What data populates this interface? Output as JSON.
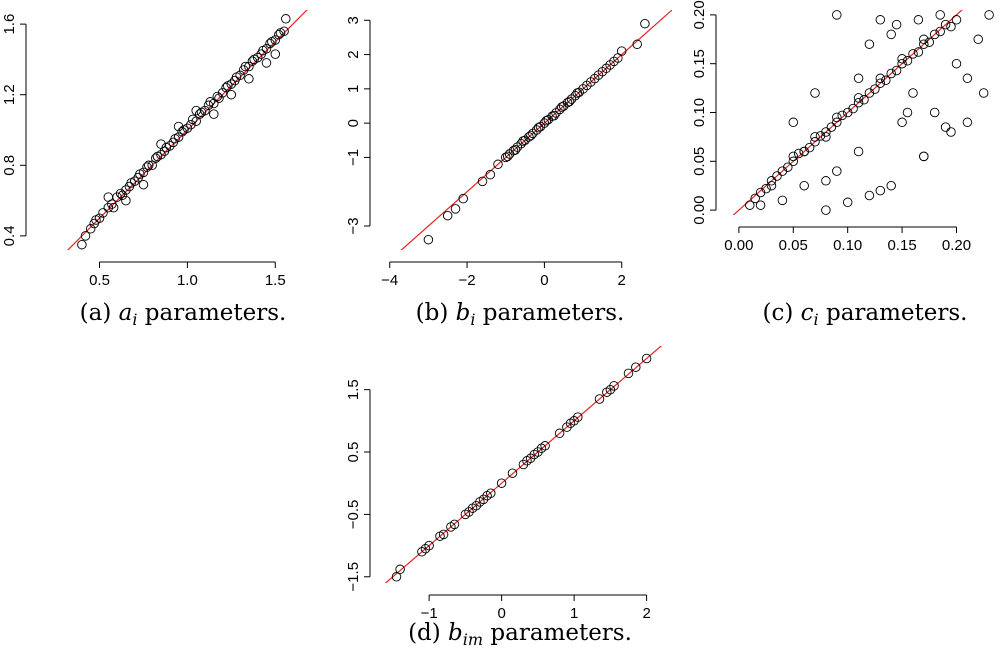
{
  "chart_data": [
    {
      "id": "a",
      "type": "scatter",
      "caption": {
        "label": "(a)",
        "symbol": "a",
        "sub": "i",
        "text": " parameters."
      },
      "xlim": [
        0.15,
        1.8
      ],
      "ylim": [
        0.32,
        1.68
      ],
      "xticks": [
        0.5,
        1.0,
        1.5
      ],
      "xtick_labels": [
        "0.5",
        "1.0",
        "1.5"
      ],
      "yticks": [
        0.4,
        0.8,
        1.2,
        1.6
      ],
      "ytick_labels": [
        "0.4",
        "0.8",
        "1.2",
        "1.6"
      ],
      "reference_line": {
        "slope": 1,
        "intercept": 0
      },
      "x": [
        0.4,
        0.42,
        0.45,
        0.47,
        0.48,
        0.5,
        0.52,
        0.55,
        0.57,
        0.58,
        0.6,
        0.62,
        0.63,
        0.65,
        0.67,
        0.68,
        0.7,
        0.72,
        0.73,
        0.75,
        0.77,
        0.78,
        0.8,
        0.82,
        0.83,
        0.85,
        0.87,
        0.88,
        0.9,
        0.92,
        0.93,
        0.95,
        0.97,
        0.98,
        1.0,
        1.02,
        1.03,
        1.05,
        1.07,
        1.08,
        1.1,
        1.12,
        1.13,
        1.15,
        1.17,
        1.18,
        1.2,
        1.22,
        1.23,
        1.25,
        1.27,
        1.28,
        1.3,
        1.32,
        1.33,
        1.35,
        1.37,
        1.38,
        1.4,
        1.42,
        1.43,
        1.45,
        1.47,
        1.48,
        1.5,
        1.52,
        1.53,
        1.55,
        1.56,
        0.55,
        0.75,
        0.95,
        1.15,
        1.35,
        1.5,
        0.65,
        0.85,
        1.05,
        1.25,
        1.45
      ],
      "y": [
        0.35,
        0.4,
        0.44,
        0.47,
        0.49,
        0.5,
        0.53,
        0.56,
        0.58,
        0.56,
        0.62,
        0.64,
        0.63,
        0.66,
        0.68,
        0.7,
        0.71,
        0.73,
        0.75,
        0.76,
        0.79,
        0.8,
        0.8,
        0.84,
        0.85,
        0.86,
        0.88,
        0.9,
        0.91,
        0.93,
        0.95,
        0.96,
        0.99,
        1.0,
        1.01,
        1.03,
        1.06,
        1.05,
        1.09,
        1.1,
        1.11,
        1.14,
        1.16,
        1.15,
        1.19,
        1.18,
        1.21,
        1.24,
        1.25,
        1.26,
        1.28,
        1.3,
        1.31,
        1.34,
        1.36,
        1.36,
        1.39,
        1.4,
        1.41,
        1.43,
        1.45,
        1.46,
        1.49,
        1.5,
        1.51,
        1.54,
        1.55,
        1.56,
        1.63,
        0.62,
        0.69,
        1.02,
        1.09,
        1.29,
        1.43,
        0.6,
        0.92,
        1.11,
        1.2,
        1.38
      ]
    },
    {
      "id": "b",
      "type": "scatter",
      "caption": {
        "label": "(b)",
        "symbol": "b",
        "sub": "i",
        "text": " parameters."
      },
      "xlim": [
        -4.2,
        3.3
      ],
      "ylim": [
        -3.7,
        3.3
      ],
      "xticks": [
        -4,
        -2,
        0,
        2
      ],
      "xtick_labels": [
        "−4",
        "−2",
        "0",
        "2"
      ],
      "yticks": [
        -3,
        -1,
        0,
        1,
        2,
        3
      ],
      "ytick_labels": [
        "−3",
        "−1",
        "0",
        "1",
        "2",
        "3"
      ],
      "reference_line": {
        "slope": 1,
        "intercept": 0
      },
      "x": [
        -3.0,
        -2.5,
        -2.3,
        -2.1,
        -1.6,
        -1.4,
        -1.2,
        -1.0,
        -0.9,
        -0.8,
        -0.7,
        -0.6,
        -0.5,
        -0.4,
        -0.3,
        -0.2,
        -0.1,
        0.0,
        0.1,
        0.2,
        0.3,
        0.4,
        0.5,
        0.6,
        0.7,
        0.8,
        0.9,
        1.0,
        1.1,
        1.2,
        1.3,
        1.4,
        1.5,
        1.6,
        1.7,
        1.8,
        1.9,
        2.0,
        2.4,
        2.6,
        -0.95,
        -0.75,
        -0.55,
        -0.35,
        -0.15,
        0.05,
        0.25,
        0.45,
        0.65,
        0.85
      ],
      "y": [
        -3.4,
        -2.7,
        -2.5,
        -2.2,
        -1.7,
        -1.5,
        -1.2,
        -1.0,
        -0.9,
        -0.8,
        -0.7,
        -0.6,
        -0.5,
        -0.4,
        -0.3,
        -0.2,
        -0.1,
        0.0,
        0.1,
        0.2,
        0.3,
        0.4,
        0.5,
        0.6,
        0.7,
        0.8,
        0.9,
        1.0,
        1.1,
        1.2,
        1.3,
        1.4,
        1.5,
        1.6,
        1.7,
        1.8,
        1.9,
        2.1,
        2.3,
        2.9,
        -0.97,
        -0.78,
        -0.52,
        -0.36,
        -0.13,
        0.07,
        0.22,
        0.47,
        0.63,
        0.88
      ]
    },
    {
      "id": "c",
      "type": "scatter",
      "caption": {
        "label": "(c)",
        "symbol": "c",
        "sub": "i",
        "text": " parameters."
      },
      "xlim": [
        -0.01,
        0.24
      ],
      "ylim": [
        -0.005,
        0.205
      ],
      "xticks": [
        0.0,
        0.05,
        0.1,
        0.15,
        0.2
      ],
      "xtick_labels": [
        "0.00",
        "0.05",
        "0.10",
        "0.15",
        "0.20"
      ],
      "yticks": [
        0.0,
        0.05,
        0.1,
        0.15,
        0.2
      ],
      "ytick_labels": [
        "0.00",
        "0.05",
        "0.10",
        "0.15",
        "0.20"
      ],
      "reference_line": {
        "slope": 1,
        "intercept": 0
      },
      "x": [
        0.01,
        0.015,
        0.02,
        0.025,
        0.03,
        0.03,
        0.035,
        0.04,
        0.045,
        0.05,
        0.05,
        0.055,
        0.06,
        0.065,
        0.07,
        0.07,
        0.075,
        0.08,
        0.085,
        0.09,
        0.09,
        0.095,
        0.1,
        0.105,
        0.11,
        0.11,
        0.115,
        0.12,
        0.125,
        0.13,
        0.13,
        0.135,
        0.14,
        0.145,
        0.15,
        0.15,
        0.155,
        0.16,
        0.165,
        0.17,
        0.17,
        0.175,
        0.18,
        0.185,
        0.19,
        0.195,
        0.2,
        0.02,
        0.04,
        0.06,
        0.08,
        0.05,
        0.07,
        0.09,
        0.11,
        0.13,
        0.15,
        0.17,
        0.19,
        0.21,
        0.22,
        0.225,
        0.23,
        0.09,
        0.13,
        0.145,
        0.165,
        0.185,
        0.2,
        0.12,
        0.14,
        0.155,
        0.06,
        0.08,
        0.1,
        0.12,
        0.14,
        0.16,
        0.18,
        0.11,
        0.17,
        0.195,
        0.21,
        0.08
      ],
      "y": [
        0.005,
        0.012,
        0.018,
        0.022,
        0.03,
        0.025,
        0.035,
        0.04,
        0.044,
        0.05,
        0.055,
        0.058,
        0.06,
        0.064,
        0.07,
        0.075,
        0.076,
        0.08,
        0.085,
        0.09,
        0.095,
        0.097,
        0.1,
        0.104,
        0.11,
        0.115,
        0.113,
        0.12,
        0.124,
        0.13,
        0.135,
        0.133,
        0.14,
        0.143,
        0.15,
        0.155,
        0.153,
        0.16,
        0.162,
        0.17,
        0.175,
        0.172,
        0.18,
        0.183,
        0.19,
        0.188,
        0.195,
        0.005,
        0.01,
        0.06,
        0.03,
        0.09,
        0.12,
        0.04,
        0.06,
        0.02,
        0.09,
        0.055,
        0.085,
        0.09,
        0.175,
        0.12,
        0.2,
        0.2,
        0.195,
        0.19,
        0.195,
        0.2,
        0.15,
        0.17,
        0.18,
        0.1,
        0.025,
        0.0,
        0.008,
        0.015,
        0.025,
        0.12,
        0.1,
        0.135,
        0.055,
        0.08,
        0.135,
        0.075
      ]
    },
    {
      "id": "d",
      "type": "scatter",
      "caption": {
        "label": "(d)",
        "symbol": "b",
        "sub": "im",
        "text": " parameters."
      },
      "xlim": [
        -1.65,
        2.35
      ],
      "ylim": [
        -1.6,
        2.2
      ],
      "xticks": [
        -1,
        0,
        1,
        2
      ],
      "xtick_labels": [
        "−1",
        "0",
        "1",
        "2"
      ],
      "yticks": [
        -1.5,
        -0.5,
        0.5,
        1.5
      ],
      "ytick_labels": [
        "−1.5",
        "−0.5",
        "0.5",
        "1.5"
      ],
      "reference_line": {
        "slope": 1,
        "intercept": 0
      },
      "x": [
        -1.45,
        -1.4,
        -1.1,
        -1.05,
        -1.0,
        -0.85,
        -0.8,
        -0.7,
        -0.65,
        -0.5,
        -0.45,
        -0.4,
        -0.35,
        -0.3,
        -0.25,
        -0.2,
        -0.15,
        0.0,
        0.15,
        0.3,
        0.35,
        0.4,
        0.45,
        0.5,
        0.55,
        0.6,
        0.8,
        0.9,
        0.95,
        1.0,
        1.05,
        1.35,
        1.45,
        1.5,
        1.55,
        1.75,
        1.85,
        2.0
      ],
      "y": [
        -1.5,
        -1.38,
        -1.1,
        -1.05,
        -1.0,
        -0.85,
        -0.82,
        -0.7,
        -0.66,
        -0.5,
        -0.46,
        -0.4,
        -0.36,
        -0.3,
        -0.26,
        -0.2,
        -0.16,
        0.0,
        0.16,
        0.3,
        0.36,
        0.4,
        0.46,
        0.5,
        0.56,
        0.6,
        0.8,
        0.9,
        0.96,
        1.0,
        1.06,
        1.35,
        1.46,
        1.5,
        1.56,
        1.76,
        1.86,
        2.0
      ]
    }
  ]
}
